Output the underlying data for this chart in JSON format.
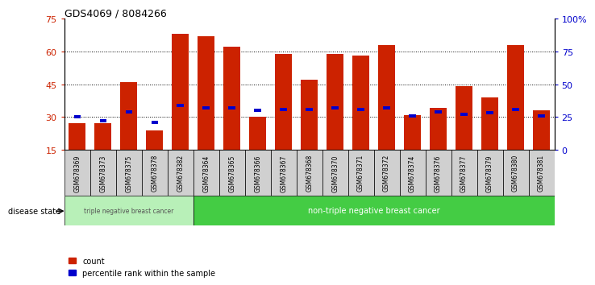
{
  "title": "GDS4069 / 8084266",
  "samples": [
    "GSM678369",
    "GSM678373",
    "GSM678375",
    "GSM678378",
    "GSM678382",
    "GSM678364",
    "GSM678365",
    "GSM678366",
    "GSM678367",
    "GSM678368",
    "GSM678370",
    "GSM678371",
    "GSM678372",
    "GSM678374",
    "GSM678376",
    "GSM678377",
    "GSM678379",
    "GSM678380",
    "GSM678381"
  ],
  "counts": [
    27,
    27,
    46,
    24,
    68,
    67,
    62,
    30,
    59,
    47,
    59,
    58,
    63,
    31,
    34,
    44,
    39,
    63,
    33
  ],
  "percentile_ranks": [
    25,
    22,
    29,
    21,
    34,
    32,
    32,
    30,
    31,
    31,
    32,
    31,
    32,
    26,
    29,
    27,
    28,
    31,
    26
  ],
  "groups": [
    {
      "label": "triple negative breast cancer",
      "start": 0,
      "end": 5,
      "color": "#90ee90"
    },
    {
      "label": "non-triple negative breast cancer",
      "start": 5,
      "end": 19,
      "color": "#44cc44"
    }
  ],
  "bar_color": "#cc2200",
  "percentile_color": "#0000cc",
  "ylim_left": [
    15,
    75
  ],
  "ylim_right": [
    0,
    100
  ],
  "yticks_left": [
    15,
    30,
    45,
    60,
    75
  ],
  "yticks_right": [
    0,
    25,
    50,
    75,
    100
  ],
  "ytick_labels_right": [
    "0",
    "25",
    "50",
    "75",
    "100%"
  ],
  "grid_values": [
    30,
    45,
    60
  ],
  "legend_count_label": "count",
  "legend_percentile_label": "percentile rank within the sample",
  "disease_state_label": "disease state",
  "background_color": "#ffffff",
  "bar_width": 0.65,
  "tick_box_color": "#d0d0d0"
}
